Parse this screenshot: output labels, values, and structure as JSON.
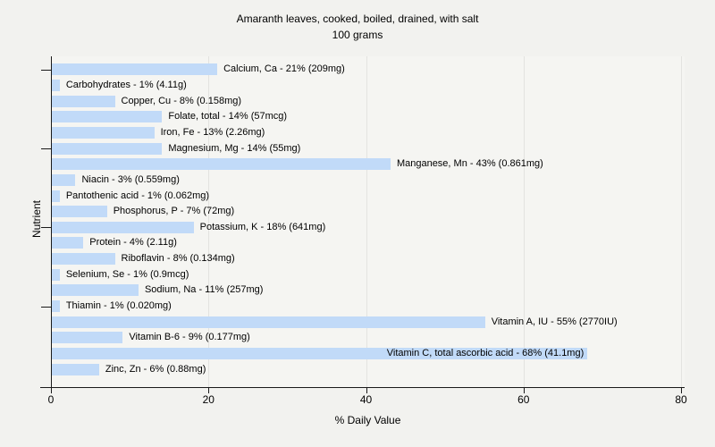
{
  "chart_data": {
    "type": "bar",
    "orientation": "horizontal",
    "title": "Amaranth leaves, cooked, boiled, drained, with salt",
    "subtitle": "100 grams",
    "xlabel": "% Daily Value",
    "ylabel": "Nutrient",
    "xlim": [
      0,
      80
    ],
    "xticks": [
      0,
      20,
      40,
      60,
      80
    ],
    "grid": "vertical-gridlines-at-xticks",
    "legend": "none",
    "y_tick_bar_indices": [
      0,
      5,
      10,
      15
    ],
    "bars": [
      {
        "nutrient": "Calcium, Ca",
        "percent": 21,
        "amount": "209mg",
        "label": "Calcium, Ca - 21% (209mg)",
        "label_inside": false
      },
      {
        "nutrient": "Carbohydrates",
        "percent": 1,
        "amount": "4.11g",
        "label": "Carbohydrates - 1% (4.11g)",
        "label_inside": false
      },
      {
        "nutrient": "Copper, Cu",
        "percent": 8,
        "amount": "0.158mg",
        "label": "Copper, Cu - 8% (0.158mg)",
        "label_inside": false
      },
      {
        "nutrient": "Folate, total",
        "percent": 14,
        "amount": "57mcg",
        "label": "Folate, total - 14% (57mcg)",
        "label_inside": false
      },
      {
        "nutrient": "Iron, Fe",
        "percent": 13,
        "amount": "2.26mg",
        "label": "Iron, Fe - 13% (2.26mg)",
        "label_inside": false
      },
      {
        "nutrient": "Magnesium, Mg",
        "percent": 14,
        "amount": "55mg",
        "label": "Magnesium, Mg - 14% (55mg)",
        "label_inside": false
      },
      {
        "nutrient": "Manganese, Mn",
        "percent": 43,
        "amount": "0.861mg",
        "label": "Manganese, Mn - 43% (0.861mg)",
        "label_inside": false
      },
      {
        "nutrient": "Niacin",
        "percent": 3,
        "amount": "0.559mg",
        "label": "Niacin - 3% (0.559mg)",
        "label_inside": false
      },
      {
        "nutrient": "Pantothenic acid",
        "percent": 1,
        "amount": "0.062mg",
        "label": "Pantothenic acid - 1% (0.062mg)",
        "label_inside": false
      },
      {
        "nutrient": "Phosphorus, P",
        "percent": 7,
        "amount": "72mg",
        "label": "Phosphorus, P - 7% (72mg)",
        "label_inside": false
      },
      {
        "nutrient": "Potassium, K",
        "percent": 18,
        "amount": "641mg",
        "label": "Potassium, K - 18% (641mg)",
        "label_inside": false
      },
      {
        "nutrient": "Protein",
        "percent": 4,
        "amount": "2.11g",
        "label": "Protein - 4% (2.11g)",
        "label_inside": false
      },
      {
        "nutrient": "Riboflavin",
        "percent": 8,
        "amount": "0.134mg",
        "label": "Riboflavin - 8% (0.134mg)",
        "label_inside": false
      },
      {
        "nutrient": "Selenium, Se",
        "percent": 1,
        "amount": "0.9mcg",
        "label": "Selenium, Se - 1% (0.9mcg)",
        "label_inside": false
      },
      {
        "nutrient": "Sodium, Na",
        "percent": 11,
        "amount": "257mg",
        "label": "Sodium, Na - 11% (257mg)",
        "label_inside": false
      },
      {
        "nutrient": "Thiamin",
        "percent": 1,
        "amount": "0.020mg",
        "label": "Thiamin - 1% (0.020mg)",
        "label_inside": false
      },
      {
        "nutrient": "Vitamin A, IU",
        "percent": 55,
        "amount": "2770IU",
        "label": "Vitamin A, IU - 55% (2770IU)",
        "label_inside": false
      },
      {
        "nutrient": "Vitamin B-6",
        "percent": 9,
        "amount": "0.177mg",
        "label": "Vitamin B-6 - 9% (0.177mg)",
        "label_inside": false
      },
      {
        "nutrient": "Vitamin C, total ascorbic acid",
        "percent": 68,
        "amount": "41.1mg",
        "label": "Vitamin C, total ascorbic acid - 68% (41.1mg)",
        "label_inside": true
      },
      {
        "nutrient": "Zinc, Zn",
        "percent": 6,
        "amount": "0.88mg",
        "label": "Zinc, Zn - 6% (0.88mg)",
        "label_inside": false
      }
    ]
  },
  "colors": {
    "page_background": "#f2f2ef",
    "plot_background": "#f5f5f2",
    "bar_fill": "#c1daf8",
    "gridline": "#e3e3e0",
    "axis": "#1a1a1a",
    "text": "#000000"
  }
}
